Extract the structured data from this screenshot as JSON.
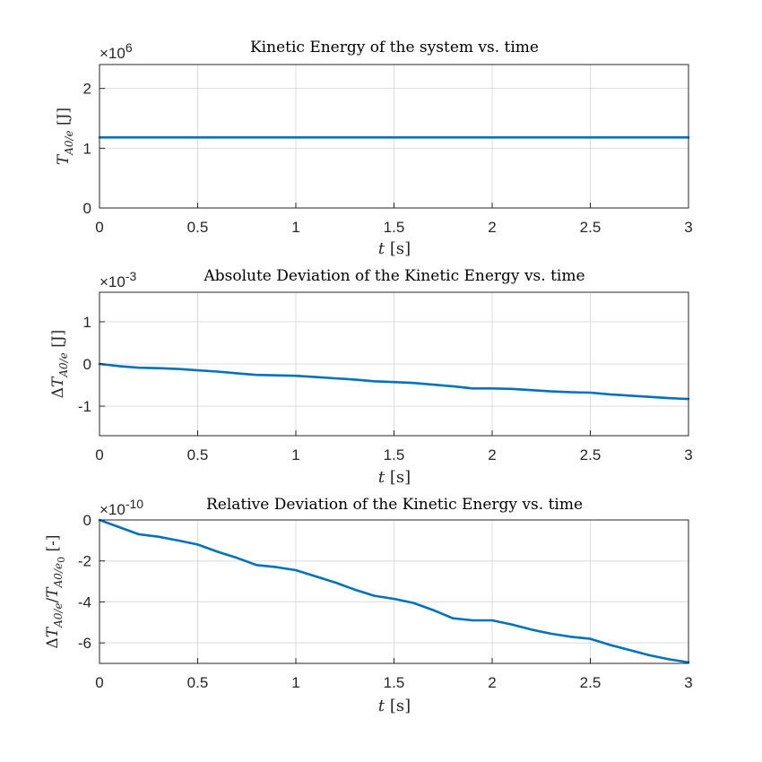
{
  "chart_data": [
    {
      "type": "line",
      "title": "Kinetic Energy of the system vs. time",
      "xlabel": "t [s]",
      "ylabel": "T_{A0/e} [J]",
      "exponent": "×10^6",
      "xlim": [
        0,
        3
      ],
      "ylim": [
        0,
        2.4
      ],
      "xticks": [
        "0",
        "0.5",
        "1",
        "1.5",
        "2",
        "2.5",
        "3"
      ],
      "yticks": [
        "0",
        "1",
        "2"
      ],
      "ytick_values": [
        0,
        1,
        2
      ],
      "grid": true,
      "color": "#0072BD",
      "x": [
        0,
        0.5,
        1,
        1.5,
        2,
        2.5,
        3
      ],
      "y": [
        1.18,
        1.18,
        1.18,
        1.18,
        1.18,
        1.18,
        1.18
      ]
    },
    {
      "type": "line",
      "title": "Absolute Deviation of the Kinetic Energy vs. time",
      "xlabel": "t [s]",
      "ylabel": "ΔT_{A0/e} [J]",
      "exponent": "×10^-3",
      "xlim": [
        0,
        3
      ],
      "ylim": [
        -1.7,
        1.7
      ],
      "xticks": [
        "0",
        "0.5",
        "1",
        "1.5",
        "2",
        "2.5",
        "3"
      ],
      "yticks": [
        "-1",
        "0",
        "1"
      ],
      "ytick_values": [
        -1,
        0,
        1
      ],
      "grid": true,
      "color": "#0072BD",
      "x": [
        0,
        0.1,
        0.2,
        0.3,
        0.4,
        0.5,
        0.6,
        0.7,
        0.8,
        0.9,
        1.0,
        1.1,
        1.2,
        1.3,
        1.4,
        1.5,
        1.6,
        1.7,
        1.8,
        1.9,
        2.0,
        2.1,
        2.2,
        2.3,
        2.4,
        2.5,
        2.6,
        2.7,
        2.8,
        2.9,
        3.0
      ],
      "y": [
        0,
        -0.05,
        -0.09,
        -0.1,
        -0.12,
        -0.15,
        -0.18,
        -0.22,
        -0.26,
        -0.27,
        -0.28,
        -0.31,
        -0.34,
        -0.37,
        -0.41,
        -0.43,
        -0.45,
        -0.49,
        -0.53,
        -0.58,
        -0.58,
        -0.59,
        -0.62,
        -0.65,
        -0.67,
        -0.68,
        -0.72,
        -0.75,
        -0.78,
        -0.81,
        -0.83
      ]
    },
    {
      "type": "line",
      "title": "Relative Deviation of the Kinetic Energy vs. time",
      "xlabel": "t [s]",
      "ylabel": "ΔT_{A0/e}/T_{A0/e_0} [-]",
      "exponent": "×10^-10",
      "xlim": [
        0,
        3
      ],
      "ylim": [
        -7,
        0
      ],
      "xticks": [
        "0",
        "0.5",
        "1",
        "1.5",
        "2",
        "2.5",
        "3"
      ],
      "yticks": [
        "0",
        "-2",
        "-4",
        "-6"
      ],
      "ytick_values": [
        0,
        -2,
        -4,
        -6
      ],
      "grid": true,
      "color": "#0072BD",
      "x": [
        0,
        0.1,
        0.2,
        0.3,
        0.4,
        0.5,
        0.6,
        0.7,
        0.8,
        0.9,
        1.0,
        1.1,
        1.2,
        1.3,
        1.4,
        1.5,
        1.6,
        1.7,
        1.8,
        1.9,
        2.0,
        2.1,
        2.2,
        2.3,
        2.4,
        2.5,
        2.6,
        2.7,
        2.8,
        2.9,
        3.0
      ],
      "y": [
        0,
        -0.35,
        -0.7,
        -0.82,
        -1.0,
        -1.2,
        -1.55,
        -1.85,
        -2.2,
        -2.3,
        -2.45,
        -2.75,
        -3.05,
        -3.4,
        -3.7,
        -3.85,
        -4.05,
        -4.4,
        -4.8,
        -4.9,
        -4.9,
        -5.1,
        -5.35,
        -5.55,
        -5.7,
        -5.8,
        -6.1,
        -6.35,
        -6.6,
        -6.8,
        -6.95
      ]
    }
  ]
}
